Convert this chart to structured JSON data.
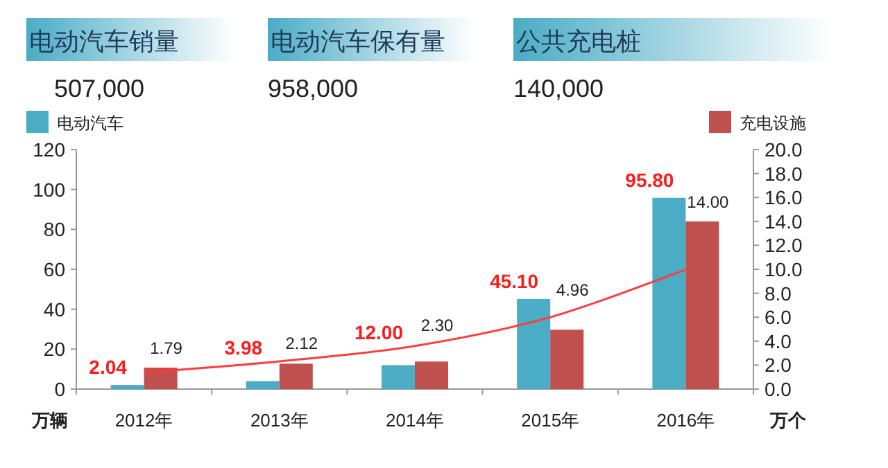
{
  "chart_data": {
    "type": "bar",
    "categories": [
      "2012年",
      "2013年",
      "2014年",
      "2015年",
      "2016年"
    ],
    "series": [
      {
        "name": "电动汽车",
        "color": "#4bacc6",
        "values": [
          2.04,
          3.98,
          12.0,
          45.1,
          95.8
        ],
        "value_labels": [
          "2.04",
          "3.98",
          "12.00",
          "45.10",
          "95.80"
        ]
      },
      {
        "name": "充电设施",
        "color": "#c0504d",
        "axis": "y2",
        "values": [
          1.79,
          2.12,
          2.3,
          4.96,
          14.0
        ],
        "value_labels": [
          "1.79",
          "2.12",
          "2.30",
          "4.96",
          "14.00"
        ]
      },
      {
        "type": "line",
        "color": "#ff3b3b",
        "values": [
          8.3,
          13.9,
          21.6,
          36,
          59.8
        ]
      }
    ],
    "ylabel": "万辆",
    "y2label": "万个",
    "ylim": [
      0,
      120
    ],
    "yticks": [
      0,
      20,
      40,
      60,
      80,
      100,
      120
    ],
    "y2lim": [
      0,
      20
    ],
    "y2ticks": [
      {
        "value": 0,
        "label": "0.0"
      },
      {
        "value": 2,
        "label": "2.0"
      },
      {
        "value": 4,
        "label": "4.0"
      },
      {
        "value": 6,
        "label": "6.0"
      },
      {
        "value": 8,
        "label": "8.0"
      },
      {
        "value": 10,
        "label": "10.0"
      },
      {
        "value": 12,
        "label": "12.0"
      },
      {
        "value": 14,
        "label": "14.0"
      },
      {
        "value": 16,
        "label": "16.0"
      },
      {
        "value": 18,
        "label": "18.0"
      },
      {
        "value": 20,
        "label": "20.0"
      }
    ],
    "legend": "top",
    "grid": false,
    "annotations": [
      "电动汽车销量",
      "507,000",
      "电动汽车保有量",
      "958,000",
      "公共充电桩",
      "140,000"
    ]
  }
}
